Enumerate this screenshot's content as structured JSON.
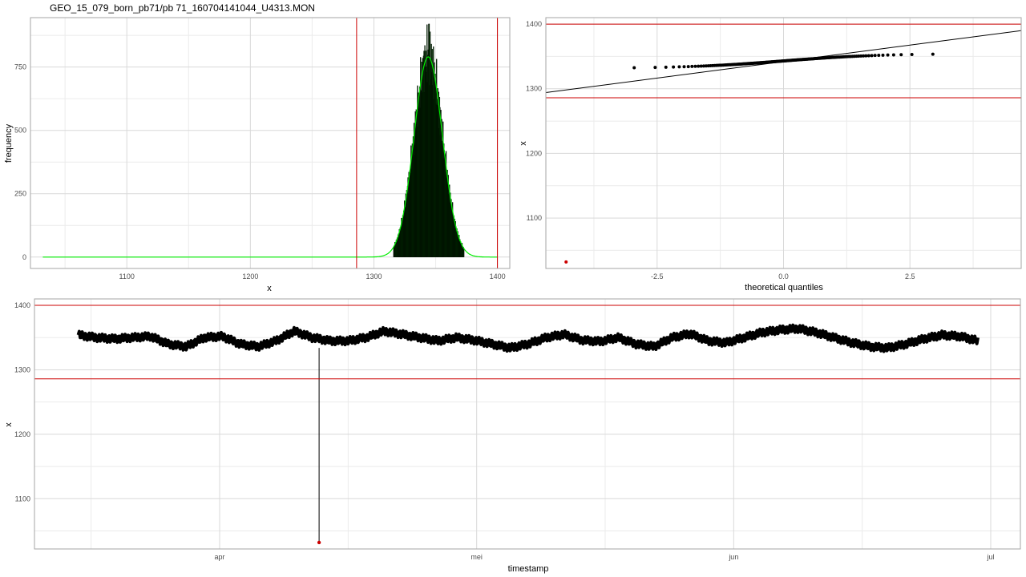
{
  "title": "GEO_15_079_born_pb71/pb 71_160704141044_U4313.MON",
  "colors": {
    "grid_major": "#d9d9d9",
    "grid_minor": "#ebebeb",
    "panel_border": "#a6a6a6",
    "hist_fill": "#003300",
    "density_line": "#00ee00",
    "limit_line": "#cc0000",
    "outlier_point": "#cc0000",
    "data": "#000000"
  },
  "chart_data": [
    {
      "type": "bar",
      "subtype": "histogram",
      "title": "GEO_15_079_born_pb71/pb 71_160704141044_U4313.MON",
      "xlabel": "x",
      "ylabel": "frequency",
      "xlim": [
        1022,
        1410
      ],
      "ylim": [
        -45,
        945
      ],
      "x_ticks": [
        1100,
        1200,
        1300,
        1400
      ],
      "y_ticks": [
        0,
        250,
        500,
        750
      ],
      "histogram": {
        "distribution": "normal",
        "mean": 1344,
        "sd": 11.5,
        "peak": 790,
        "max_bar": 920,
        "min_x": 1316,
        "max_x": 1373
      },
      "density_curve": {
        "color": "green",
        "range": [
          1032,
          1400
        ]
      },
      "vlines": [
        1286,
        1400
      ],
      "grid": true,
      "legend": "none"
    },
    {
      "type": "scatter",
      "subtype": "qq-plot",
      "xlabel": "theoretical quantiles",
      "ylabel": "x",
      "xlim": [
        -4.7,
        4.7
      ],
      "ylim": [
        1022,
        1410
      ],
      "x_ticks": [
        -2.5,
        0.0,
        2.5
      ],
      "x_tick_labels": [
        "-2.5",
        "0.0",
        "2.5"
      ],
      "y_ticks": [
        1100,
        1200,
        1300,
        1400
      ],
      "reference_line": {
        "intercept": 1342,
        "slope": 10.2
      },
      "hlines": [
        1286,
        1400
      ],
      "outliers": [
        {
          "x": -4.3,
          "y": 1032
        }
      ],
      "grid": true,
      "legend": "none"
    },
    {
      "type": "line",
      "subtype": "timeseries",
      "xlabel": "timestamp",
      "ylabel": "x",
      "x_ticks": [
        "apr",
        "mei",
        "jun",
        "jul"
      ],
      "y_ticks": [
        1100,
        1200,
        1300,
        1400
      ],
      "ylim": [
        1022,
        1410
      ],
      "hlines": [
        1286,
        1400
      ],
      "outliers": [
        {
          "timestamp": "apr",
          "y": 1032
        }
      ],
      "series_profile": [
        1354,
        1350,
        1348,
        1350,
        1352,
        1340,
        1336,
        1350,
        1352,
        1340,
        1336,
        1345,
        1360,
        1350,
        1345,
        1345,
        1350,
        1360,
        1355,
        1350,
        1345,
        1350,
        1346,
        1340,
        1334,
        1340,
        1350,
        1355,
        1346,
        1344,
        1350,
        1340,
        1336,
        1350,
        1356,
        1345,
        1342,
        1350,
        1358,
        1362,
        1364,
        1358,
        1350,
        1342,
        1336,
        1334,
        1340,
        1348,
        1354,
        1352,
        1345
      ],
      "grid": true,
      "legend": "none"
    }
  ]
}
